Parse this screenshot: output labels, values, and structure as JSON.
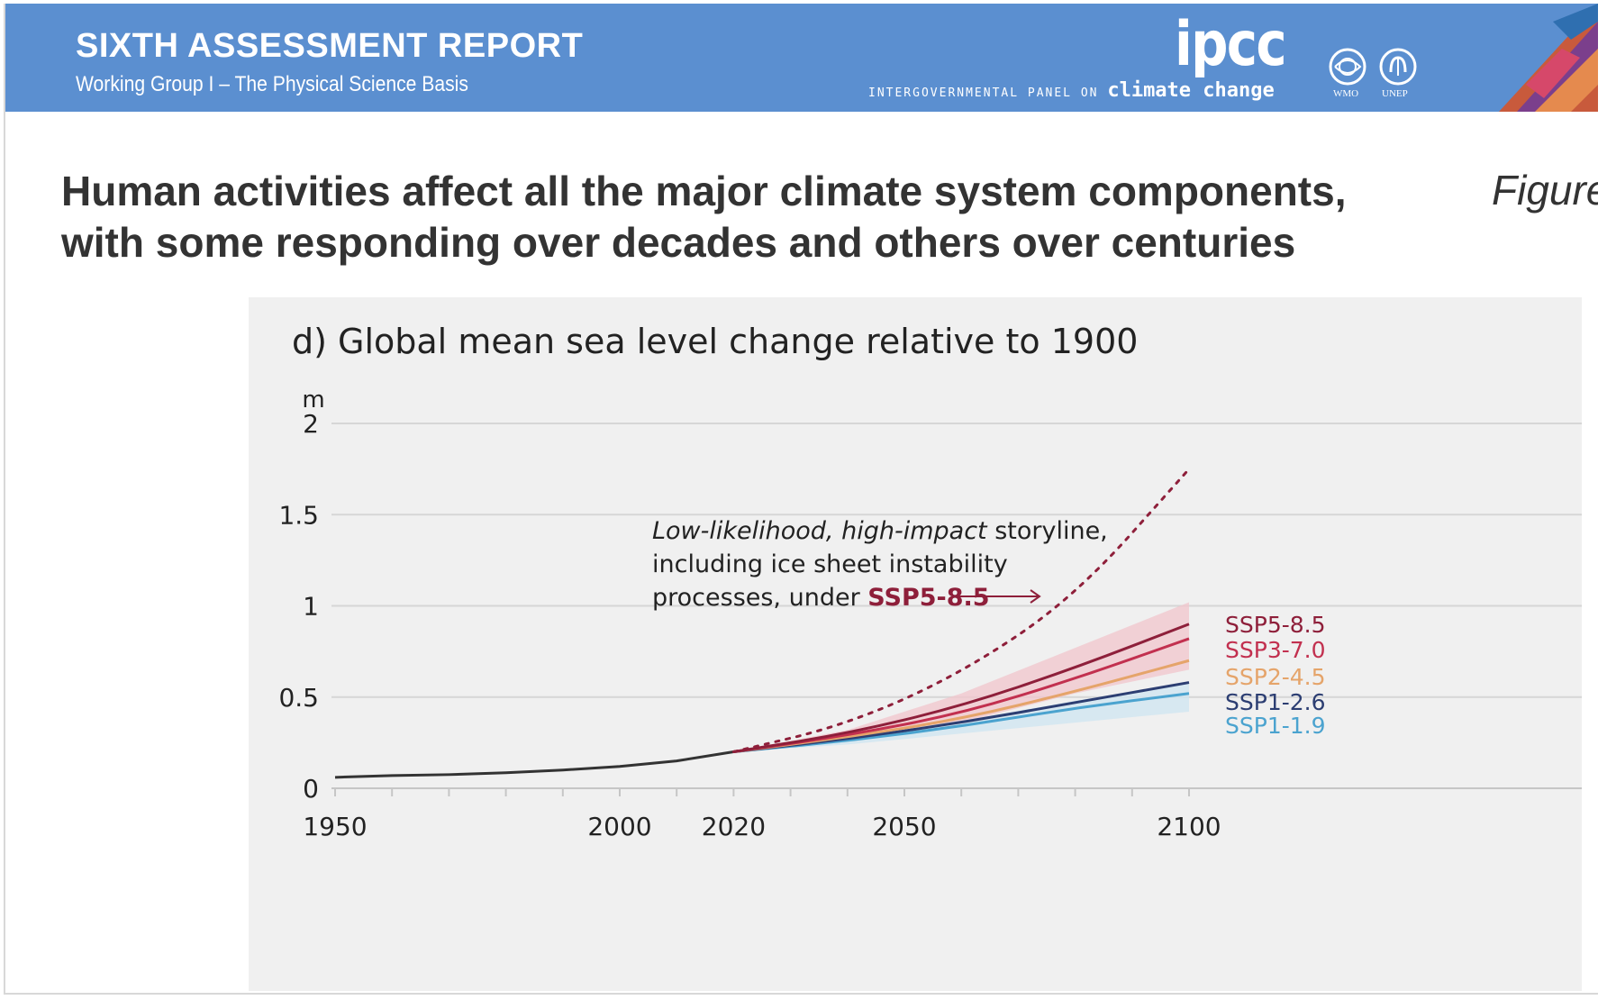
{
  "header": {
    "report_title": "SIXTH ASSESSMENT REPORT",
    "report_subtitle": "Working Group I – The Physical Science Basis",
    "logo_text": "ipcc",
    "tagline_small": "INTERGOVERNMENTAL PANEL ON",
    "tagline_big": "climate change",
    "emblem_wmo": "WMO",
    "emblem_unep": "UNEP",
    "banner_color": "#5b8fd0"
  },
  "headline": {
    "line1": "Human activities affect all the major climate system components,",
    "line2": "with some responding over decades and others over centuries",
    "figure_label": "Figure"
  },
  "chart_data": {
    "type": "line",
    "title": "d) Global mean sea level change relative to 1900",
    "ylabel": "m",
    "xlabel": "",
    "xlim": [
      1950,
      2100
    ],
    "ylim": [
      0,
      2
    ],
    "y_ticks": [
      {
        "value": 0,
        "label": "0"
      },
      {
        "value": 0.5,
        "label": "0.5"
      },
      {
        "value": 1,
        "label": "1"
      },
      {
        "value": 1.5,
        "label": "1.5"
      },
      {
        "value": 2,
        "label": "2"
      }
    ],
    "x_tick_labels": [
      {
        "value": 1950,
        "label": "1950"
      },
      {
        "value": 2000,
        "label": "2000"
      },
      {
        "value": 2020,
        "label": "2020"
      },
      {
        "value": 2050,
        "label": "2050"
      },
      {
        "value": 2100,
        "label": "2100"
      }
    ],
    "x_minor_ticks": [
      1960,
      1970,
      1980,
      1990,
      2010,
      2030,
      2040,
      2060,
      2070,
      2080,
      2090
    ],
    "grid": true,
    "historical": {
      "color": "#333333",
      "x": [
        1950,
        1960,
        1970,
        1980,
        1990,
        2000,
        2010,
        2020
      ],
      "y": [
        0.06,
        0.07,
        0.075,
        0.085,
        0.1,
        0.12,
        0.15,
        0.2
      ]
    },
    "series": [
      {
        "name": "SSP5-8.5",
        "color": "#8e1f3a",
        "band_color": "#f2c6cc",
        "x": [
          2020,
          2040,
          2060,
          2080,
          2100
        ],
        "y": [
          0.2,
          0.3,
          0.45,
          0.66,
          0.9
        ],
        "lower": [
          0.2,
          0.27,
          0.36,
          0.52,
          0.65
        ],
        "upper": [
          0.2,
          0.32,
          0.52,
          0.77,
          1.02
        ]
      },
      {
        "name": "SSP3-7.0",
        "color": "#c2304f",
        "band_color": "#f2c6cc",
        "x": [
          2020,
          2040,
          2060,
          2080,
          2100
        ],
        "y": [
          0.2,
          0.29,
          0.41,
          0.6,
          0.82
        ]
      },
      {
        "name": "SSP2-4.5",
        "color": "#e5a46a",
        "band_color": "#f5dcc4",
        "x": [
          2020,
          2040,
          2060,
          2080,
          2100
        ],
        "y": [
          0.2,
          0.28,
          0.38,
          0.53,
          0.7
        ]
      },
      {
        "name": "SSP1-2.6",
        "color": "#2c3e72",
        "band_color": "#cfd8ea",
        "x": [
          2020,
          2040,
          2060,
          2080,
          2100
        ],
        "y": [
          0.2,
          0.27,
          0.36,
          0.47,
          0.58
        ]
      },
      {
        "name": "SSP1-1.9",
        "color": "#4ba3cf",
        "band_color": "#cfe6f2",
        "x": [
          2020,
          2040,
          2060,
          2080,
          2100
        ],
        "y": [
          0.2,
          0.26,
          0.34,
          0.44,
          0.52
        ],
        "lower": [
          0.2,
          0.24,
          0.3,
          0.36,
          0.42
        ],
        "upper": [
          0.2,
          0.28,
          0.37,
          0.48,
          0.58
        ]
      }
    ],
    "storyline": {
      "color": "#8e1f3a",
      "x": [
        2020,
        2040,
        2060,
        2080,
        2100
      ],
      "y": [
        0.2,
        0.35,
        0.63,
        1.05,
        1.75
      ],
      "annotation_italic": "Low-likelihood, high-impact",
      "annotation_line1_rest": " storyline,",
      "annotation_line2": "including ice sheet instability",
      "annotation_line3_prefix": "processes, under ",
      "annotation_line3_highlight": "SSP5-8.5"
    }
  }
}
